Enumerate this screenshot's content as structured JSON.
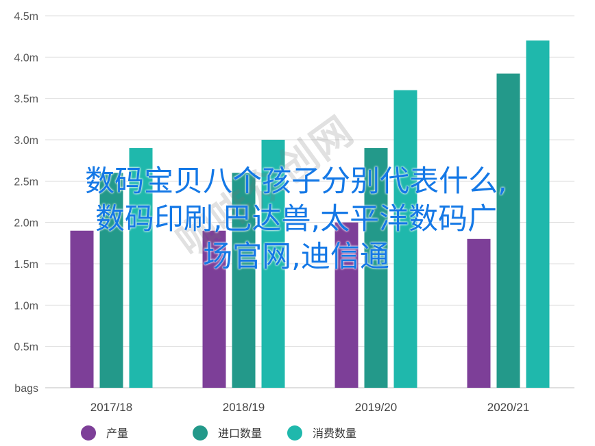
{
  "chart_data": {
    "type": "bar",
    "categories": [
      "2017/18",
      "2018/19",
      "2019/20",
      "2020/21"
    ],
    "series": [
      {
        "name": "产量",
        "values": [
          1.9,
          1.9,
          2.0,
          1.8
        ],
        "color": "#7d3f98"
      },
      {
        "name": "进口数量",
        "values": [
          2.6,
          2.6,
          2.9,
          3.8
        ],
        "color": "#23998a"
      },
      {
        "name": "消费数量",
        "values": [
          2.9,
          3.0,
          3.6,
          4.2
        ],
        "color": "#1fb8ac"
      }
    ],
    "y_ticks": [
      "bags",
      "0.5m",
      "1.0m",
      "1.5m",
      "2.0m",
      "2.5m",
      "3.0m",
      "3.5m",
      "4.0m",
      "4.5m"
    ],
    "ylim": [
      0,
      4.5
    ],
    "grid": true,
    "legend_position": "bottom"
  },
  "overlay": {
    "headline_lines": [
      "数码宝贝八个孩子分别代表什么,",
      "数码印刷,巴达兽,太平洋数码广",
      "场官网,迪信通"
    ],
    "watermark": "咖啡众创网"
  }
}
